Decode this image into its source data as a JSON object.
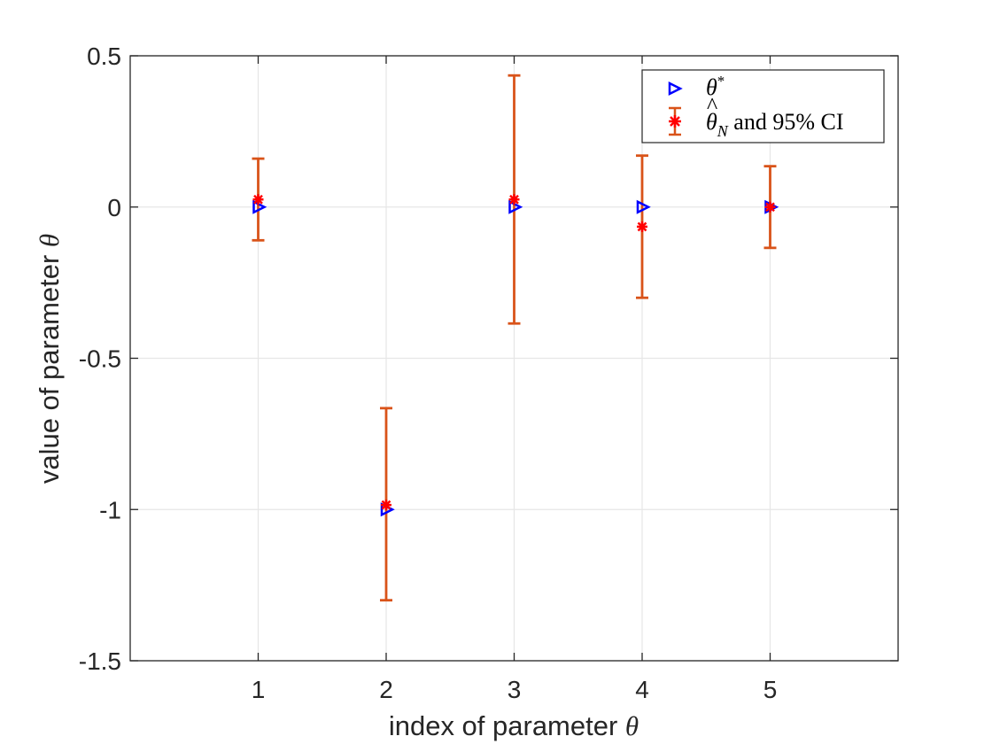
{
  "chart_data": {
    "type": "scatter",
    "title": "",
    "xlabel": {
      "text": "index of parameter ",
      "symbol": "θ"
    },
    "ylabel": {
      "text": "value of parameter ",
      "symbol": "θ"
    },
    "xlim": [
      0,
      6
    ],
    "ylim": [
      -1.5,
      0.5
    ],
    "xticks": [
      1,
      2,
      3,
      4,
      5
    ],
    "xtick_labels": [
      "1",
      "2",
      "3",
      "4",
      "5"
    ],
    "yticks": [
      -1.5,
      -1,
      -0.5,
      0,
      0.5
    ],
    "ytick_labels": [
      "-1.5",
      "-1",
      "-0.5",
      "0",
      "0.5"
    ],
    "grid": true,
    "legend_position": "top-right",
    "series": [
      {
        "name": "theta_star",
        "label": {
          "base": "θ",
          "sup": "*"
        },
        "marker": "triangle-right",
        "color": "#0000ff",
        "x": [
          1,
          2,
          3,
          4,
          5
        ],
        "y": [
          0,
          -1,
          0,
          0,
          0
        ]
      },
      {
        "name": "theta_hat",
        "label": {
          "base": "θ",
          "hat": "^",
          "sub": "N",
          "rest": " and 95% CI"
        },
        "marker": "asterisk",
        "color": "#ff0000",
        "errorbar_color": "#d95319",
        "x": [
          1,
          2,
          3,
          4,
          5
        ],
        "y": [
          0.025,
          -0.985,
          0.025,
          -0.065,
          0.0
        ],
        "ci_lower": [
          -0.11,
          -1.3,
          -0.385,
          -0.3,
          -0.135
        ],
        "ci_upper": [
          0.16,
          -0.665,
          0.435,
          0.17,
          0.135
        ]
      }
    ]
  }
}
